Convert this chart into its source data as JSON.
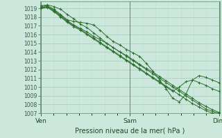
{
  "background_color": "#cce8dd",
  "grid_color_major": "#aacfbf",
  "grid_color_minor": "#bdddd0",
  "line_color": "#2d6e2d",
  "title": "Pression niveau de la mer( hPa )",
  "ylim": [
    1007,
    1019.8
  ],
  "yticks": [
    1007,
    1008,
    1009,
    1010,
    1011,
    1012,
    1013,
    1014,
    1015,
    1016,
    1017,
    1018,
    1019
  ],
  "xtick_labels": [
    "Ven",
    "Sam",
    "Dim"
  ],
  "xtick_positions": [
    0.0,
    0.5,
    1.0
  ],
  "series": [
    [
      1019.3,
      1019.4,
      1019.2,
      1018.9,
      1018.3,
      1017.8,
      1017.2,
      1016.8,
      1016.2,
      1015.6,
      1015.0,
      1014.5,
      1014.0,
      1013.5,
      1013.0,
      1012.5,
      1012.0,
      1011.5,
      1011.0,
      1010.5,
      1010.0,
      1009.5,
      1009.0,
      1008.5,
      1008.0,
      1007.5,
      1007.2,
      1007.0
    ],
    [
      1019.2,
      1019.3,
      1018.9,
      1018.3,
      1017.7,
      1017.5,
      1017.4,
      1017.3,
      1017.1,
      1016.5,
      1015.8,
      1015.2,
      1014.8,
      1014.3,
      1013.9,
      1013.5,
      1012.7,
      1011.8,
      1010.8,
      1009.8,
      1008.7,
      1008.3,
      1009.2,
      1010.8,
      1011.3,
      1011.1,
      1010.8,
      1010.5
    ],
    [
      1019.1,
      1019.2,
      1018.8,
      1018.2,
      1017.6,
      1017.1,
      1016.7,
      1016.3,
      1015.8,
      1015.4,
      1015.0,
      1014.5,
      1014.0,
      1013.6,
      1013.1,
      1012.6,
      1012.1,
      1011.7,
      1011.2,
      1010.7,
      1010.2,
      1009.7,
      1009.2,
      1008.7,
      1008.2,
      1007.8,
      1007.4,
      1007.1
    ],
    [
      1019.1,
      1019.2,
      1018.7,
      1018.1,
      1017.5,
      1017.0,
      1016.6,
      1016.1,
      1015.6,
      1015.1,
      1014.6,
      1014.1,
      1013.6,
      1013.1,
      1012.6,
      1012.1,
      1011.6,
      1011.1,
      1010.6,
      1010.1,
      1009.6,
      1009.1,
      1008.6,
      1008.1,
      1007.7,
      1007.3,
      1007.0,
      1007.0
    ],
    [
      1019.0,
      1019.1,
      1018.6,
      1018.0,
      1017.4,
      1016.9,
      1016.5,
      1016.0,
      1015.5,
      1015.0,
      1014.5,
      1014.0,
      1013.5,
      1013.0,
      1012.5,
      1012.0,
      1011.5,
      1011.0,
      1010.5,
      1010.0,
      1009.5,
      1010.0,
      1010.6,
      1010.8,
      1010.5,
      1010.2,
      1009.8,
      1009.5
    ]
  ]
}
